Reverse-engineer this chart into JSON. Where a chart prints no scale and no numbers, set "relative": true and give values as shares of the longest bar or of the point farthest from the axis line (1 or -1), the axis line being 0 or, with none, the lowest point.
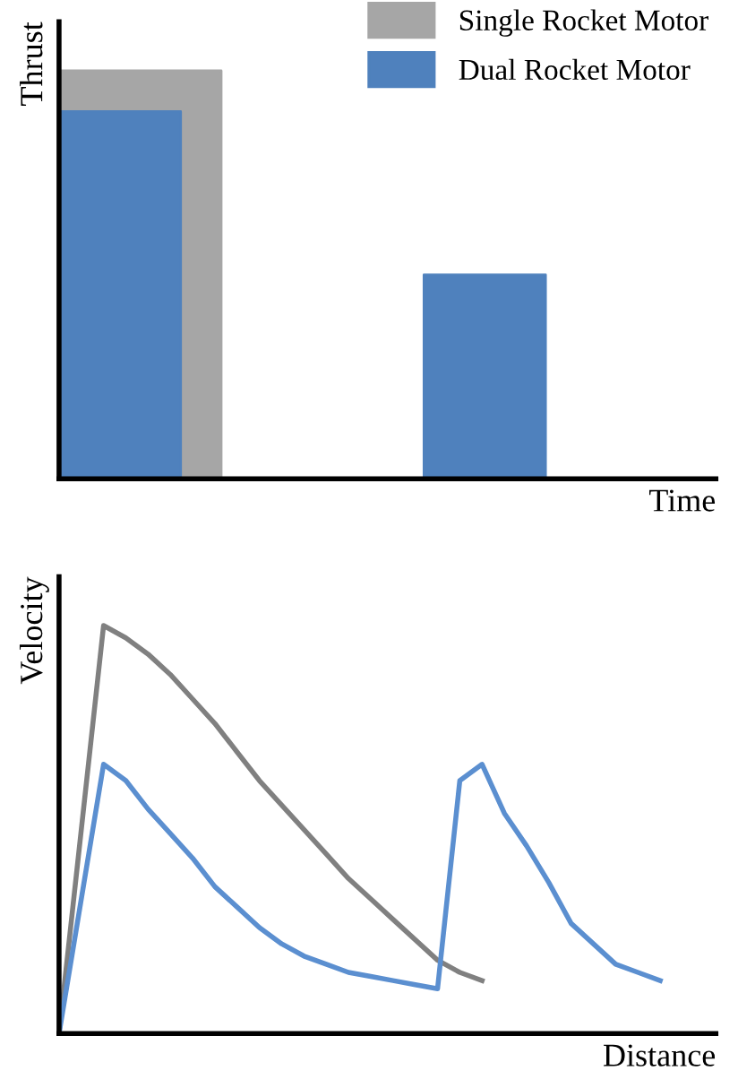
{
  "chart_data": [
    {
      "type": "area",
      "relative": true,
      "xlabel": "Time",
      "ylabel": "Thrust",
      "legend": "top right",
      "categories": [
        null,
        null,
        null,
        null,
        null,
        null,
        null,
        null,
        null,
        null,
        null,
        null,
        null,
        null,
        null,
        null
      ],
      "series": [
        {
          "name": "Single Rocket Motor",
          "color": "#a6a6a6",
          "values": [
            1,
            1,
            1,
            1,
            0,
            null,
            null,
            null,
            null,
            null,
            null,
            null,
            null,
            null,
            null,
            null
          ]
        },
        {
          "name": "Dual Rocket Motor",
          "color": "#4f81bd",
          "values": [
            0.9,
            0.9,
            0.9,
            0,
            0,
            0,
            0,
            0,
            0,
            0.5,
            0.5,
            0.5,
            0,
            null,
            null,
            null
          ]
        }
      ]
    },
    {
      "type": "line",
      "relative": true,
      "xlabel": "Distance",
      "ylabel": "Velocity",
      "categories": [
        null,
        null,
        null,
        null,
        null,
        null,
        null,
        null,
        null,
        null,
        null,
        null,
        null,
        null,
        null,
        null,
        null,
        null,
        null,
        null,
        null,
        null,
        null,
        null,
        null,
        null,
        null,
        null,
        null
      ],
      "series": [
        {
          "color": "#808080",
          "values": [
            0,
            0.5,
            1,
            0.97,
            0.93,
            0.88,
            0.82,
            0.76,
            0.69,
            0.62,
            0.56,
            0.5,
            0.44,
            0.38,
            0.33,
            0.28,
            0.23,
            0.18,
            0.15,
            0.13,
            null,
            null,
            null,
            null,
            null,
            null,
            null,
            null,
            null
          ]
        },
        {
          "color": "#5b8fd0",
          "values": [
            0,
            0.33,
            0.66,
            0.62,
            0.55,
            0.49,
            0.43,
            0.36,
            0.31,
            0.26,
            0.22,
            0.19,
            0.17,
            0.15,
            0.14,
            0.13,
            0.12,
            0.11,
            0.62,
            0.66,
            0.54,
            0.46,
            0.37,
            0.27,
            0.22,
            0.17,
            0.15,
            0.13,
            null
          ]
        }
      ]
    }
  ]
}
